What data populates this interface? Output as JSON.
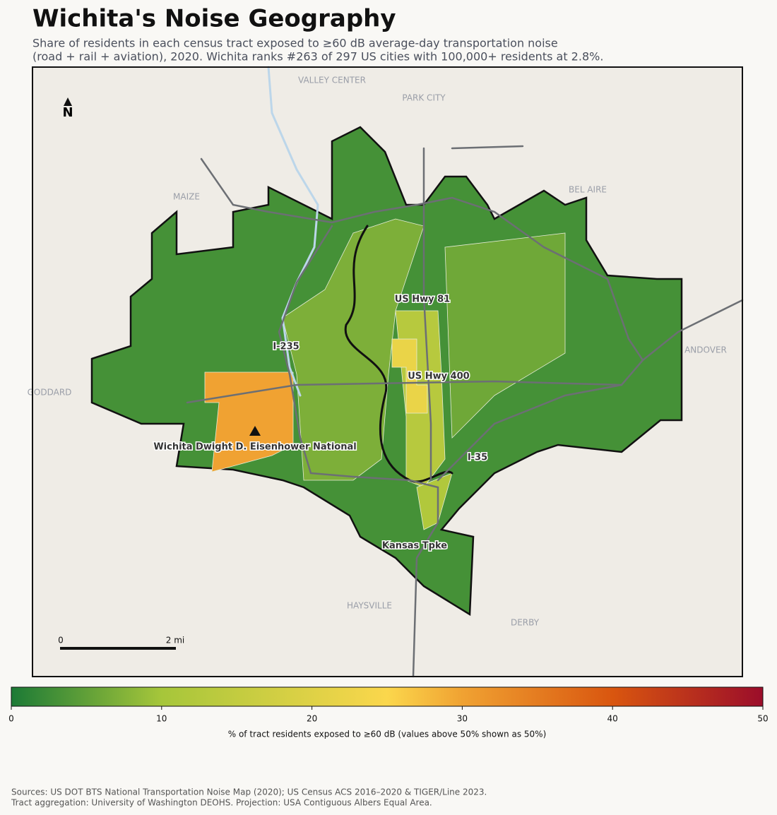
{
  "title": "Wichita's Noise Geography",
  "subtitle": [
    "Share of residents in each census tract exposed to ≥60 dB average-day transportation noise",
    "(road + rail + aviation), 2020. Wichita ranks #263 of 297 US cities with 100,000+ residents at 2.8%."
  ],
  "map": {
    "north": "N",
    "scale": [
      "0",
      "2 mi"
    ],
    "places": [
      "VALLEY CENTER",
      "PARK CITY",
      "MAIZE",
      "BEL AIRE",
      "ANDOVER",
      "GODDARD",
      "HAYSVILLE",
      "DERBY"
    ],
    "roads": [
      "US Hwy 81",
      "I-235",
      "US Hwy 400",
      "I-35",
      "Kansas Tpke"
    ],
    "airport": "Wichita Dwight D. Eisenhower National",
    "regions": [
      3,
      30,
      7,
      6,
      13,
      22,
      12
    ]
  },
  "colorbar": {
    "label": "% of tract residents exposed to ≥60 dB (values above 50% shown as 50%)",
    "lim": [
      0,
      50
    ],
    "ticks": [
      0,
      10,
      20,
      30,
      40,
      50
    ],
    "colors": [
      [
        0,
        "#1c7a36"
      ],
      [
        10,
        "#a6c63a"
      ],
      [
        25,
        "#fbd74c"
      ],
      [
        30,
        "#f0a232"
      ],
      [
        40,
        "#d9560f"
      ],
      [
        50,
        "#9b0d2a"
      ]
    ]
  },
  "sources": [
    "Sources: US DOT BTS National Transportation Noise Map (2020); US Census ACS 2016–2020 & TIGER/Line 2023.",
    "Tract aggregation: University of Washington DEOHS. Projection: USA Contiguous Albers Equal Area."
  ]
}
